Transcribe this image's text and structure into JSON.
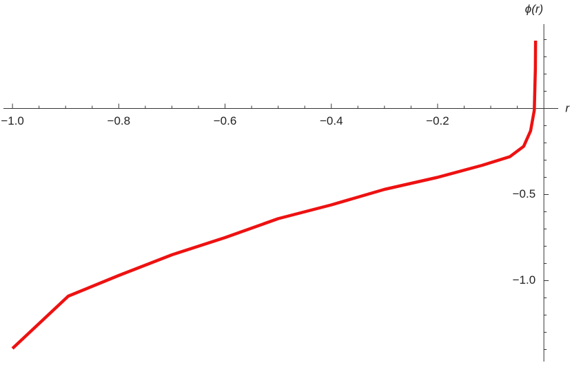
{
  "chart_data": {
    "type": "line",
    "x_label": "r",
    "y_label": "ϕ(r)",
    "xlim": [
      -1.017,
      0.027
    ],
    "ylim": [
      -1.47,
      0.49
    ],
    "xticks": [
      {
        "value": -1.0,
        "label": "−1.0"
      },
      {
        "value": -0.8,
        "label": "−0.8"
      },
      {
        "value": -0.6,
        "label": "−0.6"
      },
      {
        "value": -0.4,
        "label": "−0.4"
      },
      {
        "value": -0.2,
        "label": "−0.2"
      }
    ],
    "xminorticks": [
      -0.95,
      -0.9,
      -0.85,
      -0.75,
      -0.7,
      -0.65,
      -0.55,
      -0.5,
      -0.45,
      -0.35,
      -0.3,
      -0.25,
      -0.15,
      -0.1,
      -0.05
    ],
    "yticks": [
      {
        "value": -0.5,
        "label": "−0.5"
      },
      {
        "value": -1.0,
        "label": "−1.0"
      }
    ],
    "yminorticks": [
      0.4,
      0.3,
      0.2,
      0.1,
      -0.1,
      -0.2,
      -0.3,
      -0.4,
      -0.6,
      -0.7,
      -0.8,
      -0.9,
      -1.1,
      -1.2,
      -1.3,
      -1.4
    ],
    "series": [
      {
        "color": "#ee1111",
        "x": [
          -1.0,
          -0.895,
          -0.8,
          -0.7,
          -0.6,
          -0.5,
          -0.4,
          -0.3,
          -0.2,
          -0.116,
          -0.064,
          -0.038,
          -0.025,
          -0.018,
          -0.016,
          -0.0156
        ],
        "values": [
          -1.394,
          -1.09,
          -0.97,
          -0.85,
          -0.75,
          -0.64,
          -0.56,
          -0.47,
          -0.4,
          -0.33,
          -0.28,
          -0.22,
          -0.13,
          -0.01,
          0.23,
          0.394
        ]
      }
    ]
  }
}
